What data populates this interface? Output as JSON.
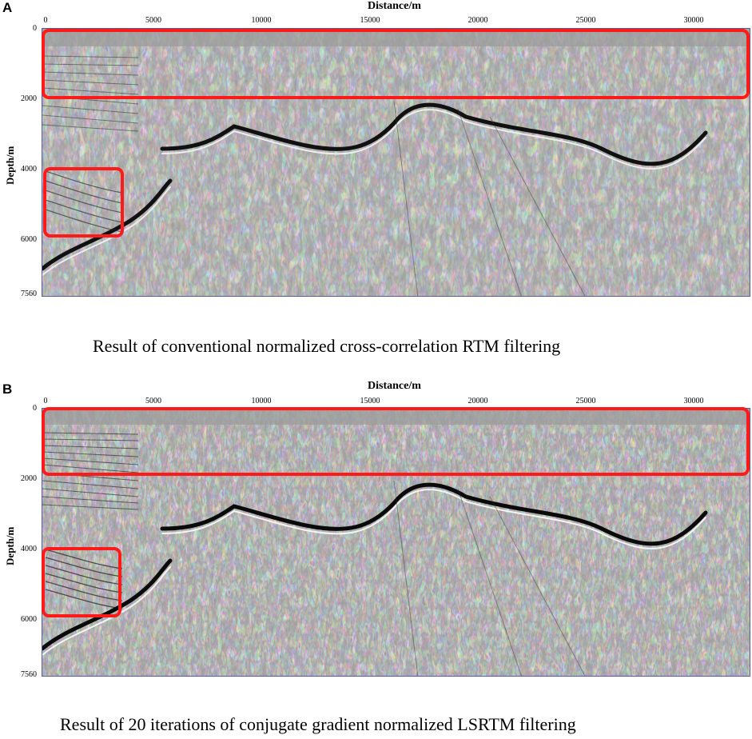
{
  "panels": [
    {
      "letter": "A",
      "x_title": "Distance/m",
      "y_title": "Depth/m",
      "x_ticks": [
        "0",
        "5000",
        "10000",
        "15000",
        "20000",
        "25000",
        "30000"
      ],
      "y_ticks": [
        "0",
        "2000",
        "4000",
        "6000",
        "7560"
      ],
      "caption": "Result of conventional normalized cross-correlation RTM filtering",
      "highlight_color": "#ff1a1a"
    },
    {
      "letter": "B",
      "x_title": "Distance/m",
      "y_title": "Depth/m",
      "x_ticks": [
        "0",
        "5000",
        "10000",
        "15000",
        "20000",
        "25000",
        "30000"
      ],
      "y_ticks": [
        "0",
        "2000",
        "4000",
        "6000",
        "7560"
      ],
      "caption": "Result of 20 iterations of conjugate gradient normalized LSRTM filtering",
      "highlight_color": "#ff1a1a"
    }
  ]
}
